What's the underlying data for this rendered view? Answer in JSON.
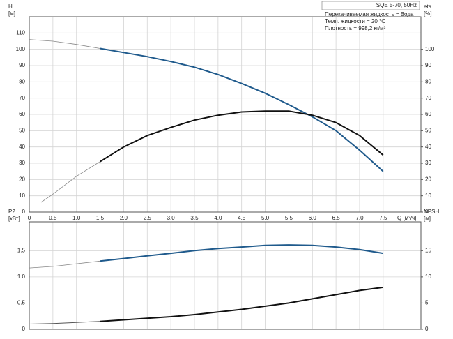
{
  "chart_data": [
    {
      "type": "line",
      "title": "SQE 5-70, 50Hz",
      "annotations": [
        "Перекачиваемая жидкость = Вода",
        "Темп. жидкости = 20 °C",
        "Плотность = 998,2 кг/м³"
      ],
      "xlabel": "Q [м³/ч]",
      "ylabel": [
        "H",
        "[м]"
      ],
      "y2label": [
        "eta",
        "[%]"
      ],
      "xlim": [
        0,
        8.3
      ],
      "ylim": [
        0,
        120
      ],
      "y2lim": [
        0,
        120
      ],
      "grid": true,
      "show_xtick_labels": true,
      "xticks": [
        0,
        {
          "value": 0.5,
          "label": "0,5"
        },
        {
          "value": 1,
          "label": "1,0"
        },
        {
          "value": 1.5,
          "label": "1,5"
        },
        {
          "value": 2,
          "label": "2,0"
        },
        {
          "value": 2.5,
          "label": "2,5"
        },
        {
          "value": 3,
          "label": "3,0"
        },
        {
          "value": 3.5,
          "label": "3,5"
        },
        {
          "value": 4,
          "label": "4,0"
        },
        {
          "value": 4.5,
          "label": "4,5"
        },
        {
          "value": 5,
          "label": "5,0"
        },
        {
          "value": 5.5,
          "label": "5,5"
        },
        {
          "value": 6,
          "label": "6,0"
        },
        {
          "value": 6.5,
          "label": "6,5"
        },
        {
          "value": 7,
          "label": "7,0"
        },
        {
          "value": 7.5,
          "label": "7,5"
        }
      ],
      "yticks": [
        0,
        10,
        20,
        30,
        40,
        50,
        60,
        70,
        80,
        90,
        100,
        110
      ],
      "y2ticks": [
        0,
        10,
        20,
        30,
        40,
        50,
        60,
        70,
        80,
        90,
        100
      ],
      "series": [
        {
          "color": "#888888",
          "line_width": 0.8,
          "x": [
            0,
            0.5,
            1,
            1.5
          ],
          "values": [
            106,
            105,
            103,
            100.5
          ]
        },
        {
          "color": "#1f5a8c",
          "line_width": 2,
          "x": [
            1.5,
            2,
            2.5,
            3,
            3.5,
            4,
            4.5,
            5,
            5.5,
            6,
            6.5,
            7,
            7.5
          ],
          "values": [
            100.5,
            98,
            95.5,
            92.5,
            89,
            84.5,
            79,
            73,
            66,
            58.5,
            50,
            38,
            25
          ]
        },
        {
          "color": "#888888",
          "line_width": 0.8,
          "axis": "y2",
          "x": [
            0.25,
            0.5,
            1,
            1.5
          ],
          "values": [
            6,
            11,
            22,
            31
          ]
        },
        {
          "color": "#111111",
          "line_width": 2,
          "axis": "y2",
          "x": [
            1.5,
            2,
            2.5,
            3,
            3.5,
            4,
            4.5,
            5,
            5.5,
            6,
            6.5,
            7,
            7.5
          ],
          "values": [
            31,
            40,
            47,
            52,
            56.5,
            59.5,
            61.5,
            62,
            62,
            59.5,
            55,
            47,
            35
          ]
        }
      ]
    },
    {
      "type": "line",
      "ylabel": [
        "P2",
        "[кВт]"
      ],
      "y2label": [
        "NPSH",
        "[м]"
      ],
      "xlim": [
        0,
        8.3
      ],
      "ylim": [
        0,
        2.05
      ],
      "y2lim": [
        0,
        20.5
      ],
      "grid": true,
      "show_xtick_labels": false,
      "xticks": [
        0,
        0.5,
        1,
        1.5,
        2,
        2.5,
        3,
        3.5,
        4,
        4.5,
        5,
        5.5,
        6,
        6.5,
        7,
        7.5
      ],
      "yticks": [
        0,
        0.5,
        {
          "value": 1,
          "label": "1.0"
        },
        1.5
      ],
      "y2ticks": [
        0,
        5,
        10,
        15
      ],
      "series": [
        {
          "color": "#888888",
          "line_width": 0.8,
          "x": [
            0,
            0.5,
            1,
            1.5
          ],
          "values": [
            1.17,
            1.2,
            1.25,
            1.3
          ]
        },
        {
          "color": "#1f5a8c",
          "line_width": 2,
          "x": [
            1.5,
            2,
            2.5,
            3,
            3.5,
            4,
            4.5,
            5,
            5.5,
            6,
            6.5,
            7,
            7.5
          ],
          "values": [
            1.3,
            1.35,
            1.4,
            1.45,
            1.5,
            1.54,
            1.57,
            1.6,
            1.61,
            1.6,
            1.57,
            1.52,
            1.45
          ]
        },
        {
          "color": "#555555",
          "line_width": 1,
          "axis": "y2",
          "x": [
            0,
            0.5,
            1,
            1.5
          ],
          "values": [
            1,
            1.1,
            1.3,
            1.5
          ]
        },
        {
          "color": "#111111",
          "line_width": 2,
          "axis": "y2",
          "x": [
            1.5,
            2,
            2.5,
            3,
            3.5,
            4,
            4.5,
            5,
            5.5,
            6,
            6.5,
            7,
            7.5
          ],
          "values": [
            1.5,
            1.8,
            2.1,
            2.4,
            2.8,
            3.3,
            3.8,
            4.4,
            5,
            5.8,
            6.6,
            7.4,
            8
          ]
        }
      ]
    }
  ]
}
